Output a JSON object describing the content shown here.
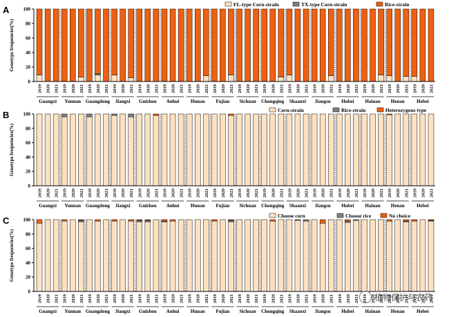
{
  "years_all": [
    "2019",
    "2020",
    "2021",
    "2019",
    "2020",
    "2021",
    "2019",
    "2020",
    "2021",
    "2019",
    "2020",
    "2021",
    "2019",
    "2020",
    "2021",
    "2019",
    "2020",
    "2021",
    "2019",
    "2020",
    "2021",
    "2019",
    "2020",
    "2021",
    "2019",
    "2020",
    "2021",
    "2019",
    "2020",
    "2021",
    "2019",
    "2020",
    "2021",
    "2019",
    "2020",
    "2021",
    "2019",
    "2020",
    "2021",
    "2019",
    "2020",
    "2021",
    "2019",
    "2020",
    "2021",
    "2019",
    "2020",
    "2021"
  ],
  "provinces": [
    "Guangxi",
    "Yunnan",
    "Guangdong",
    "Jiangxi",
    "Guizhou",
    "Anhui",
    "Hunan",
    "Fujian",
    "Sichuan",
    "Chongqing",
    "Shaanxi",
    "Jiangsu",
    "Hubei",
    "Hainan",
    "Henan",
    "Hebei"
  ],
  "watermark": "植物保护与农药",
  "chart_data": [
    {
      "panel": "A",
      "type": "bar",
      "stacked": true,
      "ylabel": "Genotype frequencies(%)",
      "ylim": [
        0,
        100
      ],
      "yticks": [
        0,
        20,
        40,
        60,
        80,
        100
      ],
      "legend_position": "top-right",
      "series": [
        {
          "name": "FL-type Corn-strain",
          "color": "#fde1c0",
          "values": [
            9,
            0,
            0,
            0,
            0,
            6,
            0,
            9,
            0,
            9,
            0,
            5,
            0,
            0,
            0,
            0,
            0,
            0,
            0,
            0,
            8,
            0,
            0,
            9,
            0,
            0,
            0,
            0,
            0,
            6,
            9,
            0,
            0,
            0,
            0,
            8,
            0,
            0,
            0,
            0,
            0,
            9,
            8,
            0,
            7,
            7,
            0,
            0
          ]
        },
        {
          "name": "TX-type Corn-strain",
          "color": "#7f7f7f",
          "values": [
            0,
            0,
            0,
            0,
            0,
            0,
            0,
            2,
            0,
            0,
            0,
            0,
            0,
            0,
            0,
            0,
            0,
            0,
            0,
            0,
            0,
            0,
            0,
            0,
            0,
            0,
            0,
            0,
            0,
            0,
            0,
            0,
            0,
            0,
            0,
            0,
            0,
            0,
            0,
            0,
            0,
            0,
            0,
            0,
            0,
            0,
            0,
            0
          ]
        },
        {
          "name": "Rice-strain",
          "color": "#ee6112",
          "values": [
            91,
            100,
            100,
            100,
            100,
            94,
            100,
            89,
            100,
            91,
            100,
            95,
            100,
            100,
            100,
            100,
            100,
            100,
            100,
            100,
            92,
            100,
            100,
            91,
            100,
            100,
            100,
            100,
            100,
            94,
            91,
            100,
            100,
            100,
            100,
            92,
            100,
            100,
            100,
            100,
            100,
            91,
            92,
            100,
            93,
            93,
            100,
            100
          ]
        }
      ]
    },
    {
      "panel": "B",
      "type": "bar",
      "stacked": true,
      "ylabel": "Genotype frequencies(%)",
      "ylim": [
        0,
        100
      ],
      "yticks": [
        0,
        20,
        40,
        60,
        80,
        100
      ],
      "legend_position": "top-right",
      "series": [
        {
          "name": "Corn-strain",
          "color": "#fde1c0",
          "values": [
            100,
            100,
            100,
            96,
            100,
            100,
            96,
            100,
            100,
            98,
            100,
            96,
            100,
            100,
            98,
            100,
            100,
            100,
            100,
            100,
            100,
            100,
            100,
            98,
            100,
            100,
            100,
            100,
            100,
            100,
            100,
            100,
            100,
            100,
            100,
            100,
            100,
            100,
            100,
            100,
            100,
            100,
            99,
            100,
            100,
            100,
            100,
            100
          ]
        },
        {
          "name": "Rice-strain",
          "color": "#7f7f7f",
          "values": [
            0,
            0,
            0,
            4,
            0,
            0,
            4,
            0,
            0,
            2,
            0,
            4,
            0,
            0,
            0,
            0,
            0,
            0,
            0,
            0,
            0,
            0,
            0,
            0,
            0,
            0,
            0,
            0,
            0,
            0,
            0,
            0,
            0,
            0,
            0,
            0,
            0,
            0,
            0,
            0,
            0,
            0,
            0,
            0,
            0,
            0,
            0,
            0
          ]
        },
        {
          "name": "Heterozygous type",
          "color": "#ee6112",
          "values": [
            0,
            0,
            0,
            0,
            0,
            0,
            0,
            0,
            0,
            0,
            0,
            0,
            0,
            0,
            2,
            0,
            0,
            0,
            0,
            0,
            0,
            0,
            0,
            2,
            0,
            0,
            0,
            0,
            0,
            0,
            0,
            0,
            0,
            0,
            0,
            0,
            0,
            0,
            0,
            0,
            0,
            0,
            1,
            0,
            0,
            0,
            0,
            0
          ]
        }
      ]
    },
    {
      "panel": "C",
      "type": "bar",
      "stacked": true,
      "ylabel": "Genotype frequencies(%)",
      "ylim": [
        0,
        100
      ],
      "yticks": [
        0,
        20,
        40,
        60,
        80,
        100
      ],
      "legend_position": "top-right",
      "series": [
        {
          "name": "Choose corn",
          "color": "#fde1c0",
          "values": [
            95,
            100,
            100,
            98,
            100,
            97,
            100,
            98,
            100,
            98,
            100,
            98,
            97,
            97,
            100,
            97,
            98,
            100,
            100,
            100,
            100,
            98,
            100,
            97,
            100,
            100,
            100,
            100,
            98,
            100,
            100,
            99,
            98,
            100,
            95,
            100,
            100,
            96,
            99,
            100,
            100,
            100,
            98,
            100,
            97,
            98,
            100,
            98
          ]
        },
        {
          "name": "Choose rice",
          "color": "#7f7f7f",
          "values": [
            0,
            0,
            0,
            0,
            0,
            2,
            0,
            0,
            0,
            0,
            0,
            0,
            2,
            2,
            0,
            1,
            0,
            0,
            0,
            0,
            0,
            0,
            0,
            2,
            0,
            0,
            0,
            0,
            0,
            0,
            0,
            1,
            2,
            0,
            0,
            0,
            0,
            2,
            1,
            0,
            0,
            0,
            0,
            0,
            1,
            0,
            0,
            1
          ]
        },
        {
          "name": "No choice",
          "color": "#ee6112",
          "values": [
            5,
            0,
            0,
            2,
            0,
            1,
            0,
            2,
            0,
            2,
            0,
            2,
            1,
            1,
            0,
            2,
            2,
            0,
            0,
            0,
            0,
            2,
            0,
            1,
            0,
            0,
            0,
            0,
            2,
            0,
            0,
            0,
            0,
            0,
            5,
            0,
            0,
            2,
            0,
            0,
            0,
            0,
            2,
            0,
            2,
            2,
            0,
            1
          ]
        }
      ]
    }
  ]
}
